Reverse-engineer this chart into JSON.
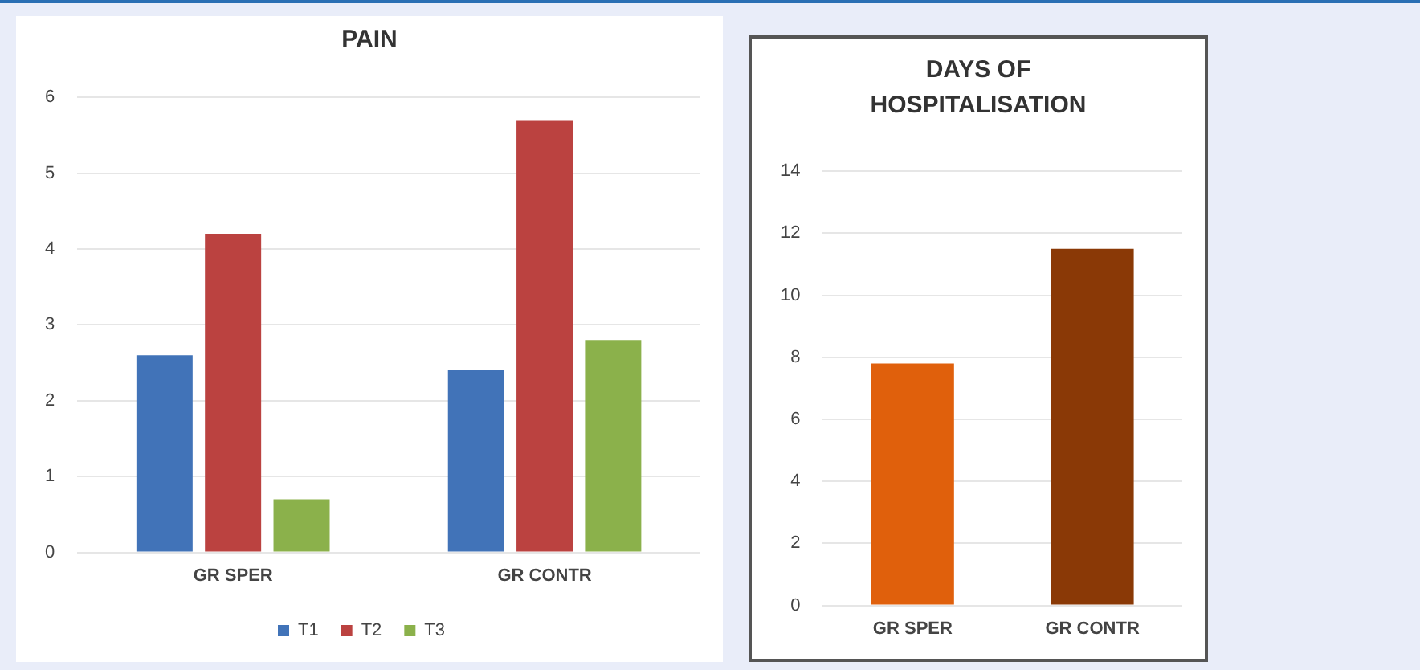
{
  "chart_data": [
    {
      "type": "bar",
      "title": "PAIN",
      "categories": [
        "GR SPER",
        "GR CONTR"
      ],
      "series": [
        {
          "name": "T1",
          "color": "#4173b8",
          "values": [
            2.6,
            2.4
          ]
        },
        {
          "name": "T2",
          "color": "#bb4240",
          "values": [
            4.2,
            5.7
          ]
        },
        {
          "name": "T3",
          "color": "#8bb14b",
          "values": [
            0.7,
            2.8
          ]
        }
      ],
      "ylim": [
        0,
        6
      ],
      "yticks": [
        0,
        1,
        2,
        3,
        4,
        5,
        6
      ],
      "grid": "y",
      "legend": "bottom"
    },
    {
      "type": "bar",
      "title": "DAYS OF HOSPITALISATION",
      "categories": [
        "GR SPER",
        "GR CONTR"
      ],
      "values": [
        7.8,
        11.5
      ],
      "colors": [
        "#e0600c",
        "#8a3906"
      ],
      "ylim": [
        0,
        14
      ],
      "yticks": [
        0,
        2,
        4,
        6,
        8,
        10,
        12,
        14
      ],
      "grid": "y"
    }
  ]
}
